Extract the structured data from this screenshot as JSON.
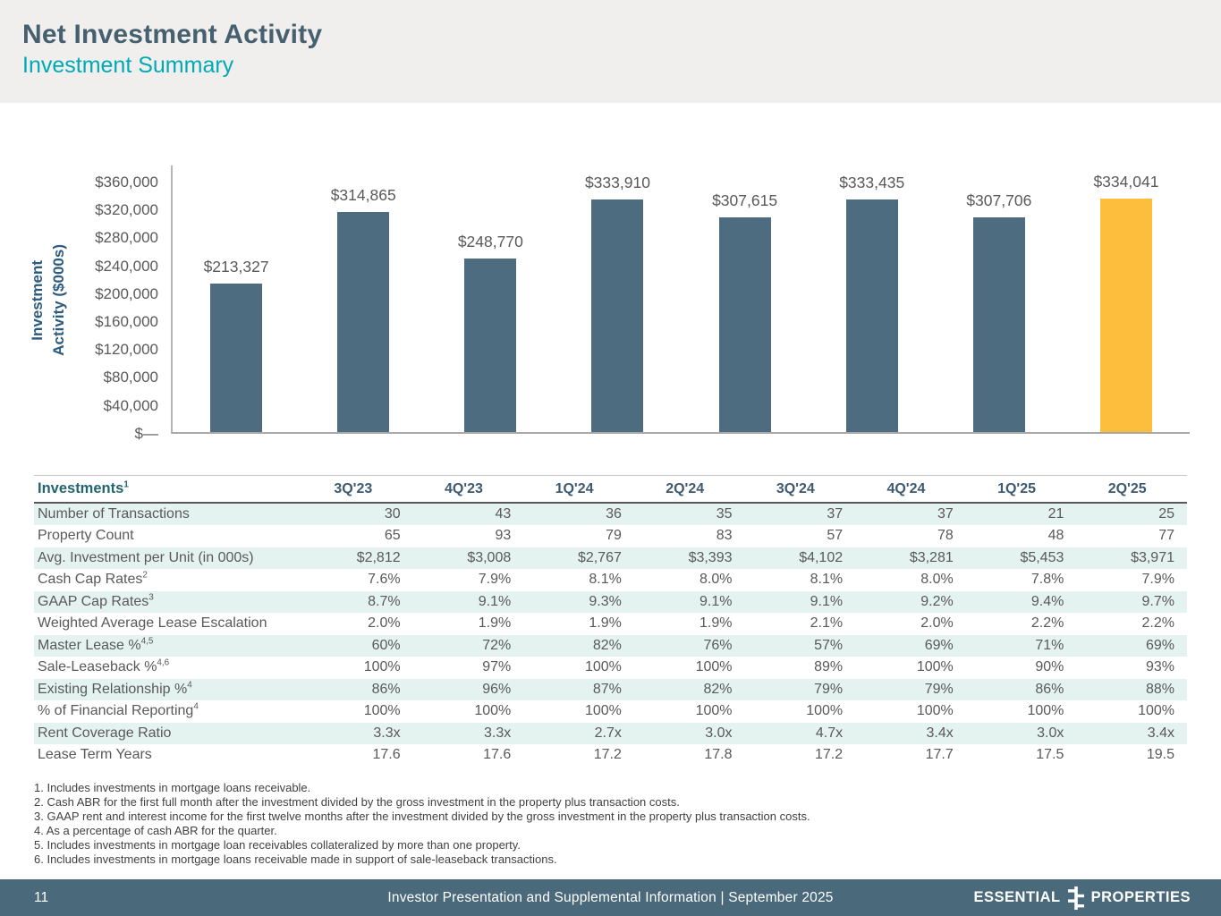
{
  "header": {
    "title": "Net Investment Activity",
    "subtitle": "Investment Summary"
  },
  "chart_data": {
    "type": "bar",
    "title": "",
    "ylabel": "Investment\nActivity ($000s)",
    "xlabel": "",
    "categories": [
      "3Q'23",
      "4Q'23",
      "1Q'24",
      "2Q'24",
      "3Q'24",
      "4Q'24",
      "1Q'25",
      "2Q'25"
    ],
    "values": [
      213327,
      314865,
      248770,
      333910,
      307615,
      333435,
      307706,
      334041
    ],
    "value_labels": [
      "$213,327",
      "$314,865",
      "$248,770",
      "$333,910",
      "$307,615",
      "$333,435",
      "$307,706",
      "$334,041"
    ],
    "ylim": [
      0,
      360000
    ],
    "ytick_step": 40000,
    "ytick_labels": [
      "$360,000",
      "$320,000",
      "$280,000",
      "$240,000",
      "$200,000",
      "$160,000",
      "$120,000",
      "$80,000",
      "$40,000",
      "$—"
    ],
    "grid": false,
    "legend": false,
    "bar_color_default": "#4D6C80",
    "bar_color_highlight": "#FDBE3E",
    "highlight_index": 7
  },
  "table": {
    "title": "Investments",
    "title_sup": "1",
    "columns": [
      "3Q'23",
      "4Q'23",
      "1Q'24",
      "2Q'24",
      "3Q'24",
      "4Q'24",
      "1Q'25",
      "2Q'25"
    ],
    "rows": [
      {
        "label": "Number of Transactions",
        "sup": "",
        "values": [
          "30",
          "43",
          "36",
          "35",
          "37",
          "37",
          "21",
          "25"
        ]
      },
      {
        "label": "Property Count",
        "sup": "",
        "values": [
          "65",
          "93",
          "79",
          "83",
          "57",
          "78",
          "48",
          "77"
        ]
      },
      {
        "label": "Avg. Investment per Unit (in 000s)",
        "sup": "",
        "values": [
          "$2,812",
          "$3,008",
          "$2,767",
          "$3,393",
          "$4,102",
          "$3,281",
          "$5,453",
          "$3,971"
        ]
      },
      {
        "label": "Cash Cap Rates",
        "sup": "2",
        "values": [
          "7.6%",
          "7.9%",
          "8.1%",
          "8.0%",
          "8.1%",
          "8.0%",
          "7.8%",
          "7.9%"
        ]
      },
      {
        "label": "GAAP Cap Rates",
        "sup": "3",
        "values": [
          "8.7%",
          "9.1%",
          "9.3%",
          "9.1%",
          "9.1%",
          "9.2%",
          "9.4%",
          "9.7%"
        ]
      },
      {
        "label": "Weighted Average Lease Escalation",
        "sup": "",
        "values": [
          "2.0%",
          "1.9%",
          "1.9%",
          "1.9%",
          "2.1%",
          "2.0%",
          "2.2%",
          "2.2%"
        ]
      },
      {
        "label": "Master Lease %",
        "sup": "4,5",
        "values": [
          "60%",
          "72%",
          "82%",
          "76%",
          "57%",
          "69%",
          "71%",
          "69%"
        ]
      },
      {
        "label": "Sale-Leaseback %",
        "sup": "4,6",
        "values": [
          "100%",
          "97%",
          "100%",
          "100%",
          "89%",
          "100%",
          "90%",
          "93%"
        ]
      },
      {
        "label": "Existing Relationship %",
        "sup": "4",
        "values": [
          "86%",
          "96%",
          "87%",
          "82%",
          "79%",
          "79%",
          "86%",
          "88%"
        ]
      },
      {
        "label": "% of Financial Reporting",
        "sup": "4",
        "values": [
          "100%",
          "100%",
          "100%",
          "100%",
          "100%",
          "100%",
          "100%",
          "100%"
        ]
      },
      {
        "label": "Rent Coverage Ratio",
        "sup": "",
        "values": [
          "3.3x",
          "3.3x",
          "2.7x",
          "3.0x",
          "4.7x",
          "3.4x",
          "3.0x",
          "3.4x"
        ]
      },
      {
        "label": "Lease Term Years",
        "sup": "",
        "values": [
          "17.6",
          "17.6",
          "17.2",
          "17.8",
          "17.2",
          "17.7",
          "17.5",
          "19.5"
        ]
      }
    ]
  },
  "footnotes": [
    "1. Includes investments in mortgage loans receivable.",
    "2. Cash ABR for the first full month after the investment divided by the gross investment in the property plus transaction costs.",
    "3. GAAP rent and interest income for the first twelve months after the investment divided by the gross investment in the property plus transaction costs.",
    "4. As a percentage of cash ABR for the quarter.",
    "5. Includes investments in mortgage loan receivables collateralized by more than one property.",
    "6. Includes investments in mortgage loans receivable made in support of sale-leaseback transactions."
  ],
  "footer": {
    "page_number": "11",
    "center_text": "Investor Presentation and Supplemental Information |  September 2025",
    "logo_left": "ESSENTIAL",
    "logo_right": "PROPERTIES"
  },
  "colors": {
    "header_band_bg": "#F0EFED",
    "title_text": "#46606F",
    "subtitle_text": "#00A9B6",
    "bar_default": "#4D6C80",
    "bar_highlight": "#FDBE3E",
    "axis_text": "#595959",
    "axis_label_text": "#2D5B7E",
    "table_title_text": "#23646F",
    "table_header_text": "#3D5A70",
    "table_row_alt_bg": "#E4F3F0",
    "table_text": "#595959",
    "footer_bg": "#4A6A7C"
  }
}
